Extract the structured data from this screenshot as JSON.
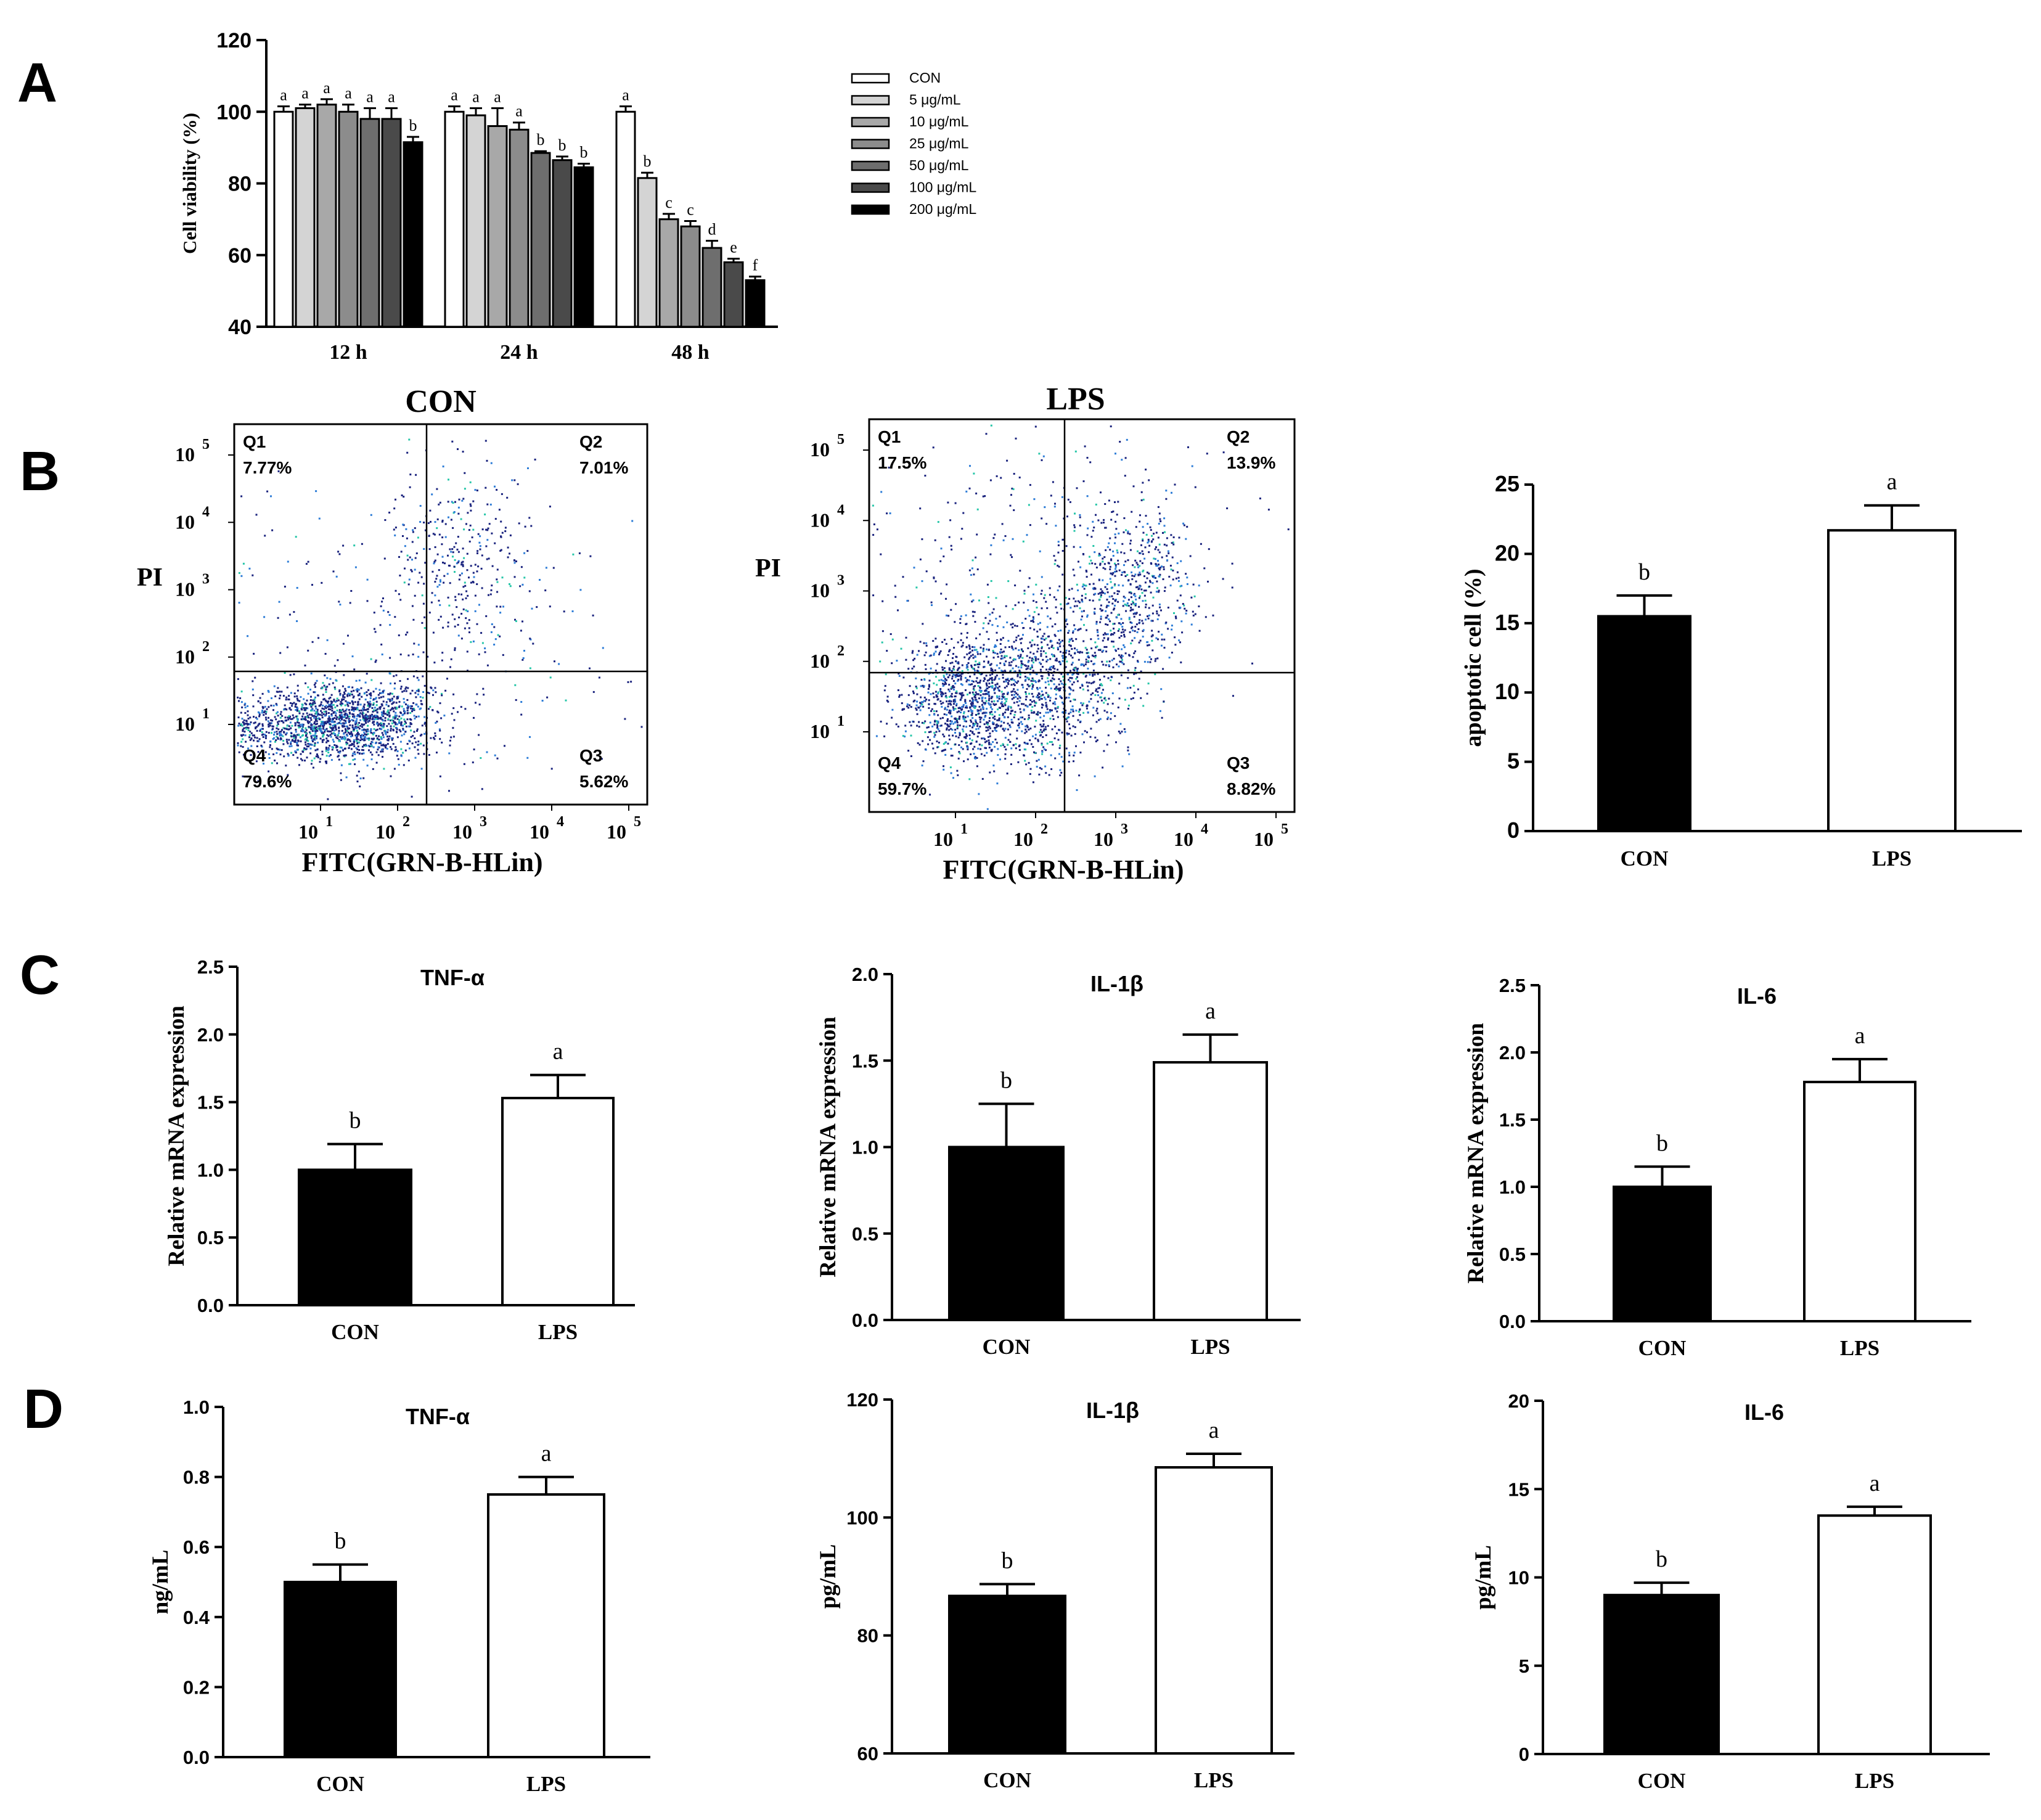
{
  "panel_letters": [
    "A",
    "B",
    "C",
    "D"
  ],
  "colors": {
    "axis": "#000000",
    "con_bar": "#000000",
    "lps_bar": "#ffffff",
    "dot_dark": "#1a237e",
    "dot_mid": "#2e7dd7",
    "dot_light": "#26c6a8"
  },
  "chart_data": [
    {
      "id": "A",
      "type": "bar",
      "categories": [
        "12 h",
        "24 h",
        "48 h"
      ],
      "ylabel": "Cell viability (%)",
      "ylim": [
        40,
        120
      ],
      "yticks": [
        40,
        60,
        80,
        100,
        120
      ],
      "series": [
        {
          "name": "CON",
          "color": "#ffffff",
          "values": [
            100,
            100,
            100
          ],
          "errors": [
            1.5,
            1.5,
            1.5
          ],
          "letters": [
            "a",
            "a",
            "a"
          ]
        },
        {
          "name": "5 μg/mL",
          "color": "#d4d4d4",
          "values": [
            101,
            99,
            81.5
          ],
          "errors": [
            1,
            2,
            1.5
          ],
          "letters": [
            "a",
            "a",
            "b"
          ]
        },
        {
          "name": "10 μg/mL",
          "color": "#a8a8a8",
          "values": [
            102,
            96,
            70
          ],
          "errors": [
            1.5,
            5,
            1.5
          ],
          "letters": [
            "a",
            "a",
            "c"
          ]
        },
        {
          "name": "25 μg/mL",
          "color": "#8c8c8c",
          "values": [
            100,
            95,
            68
          ],
          "errors": [
            2,
            2,
            1.5
          ],
          "letters": [
            "a",
            "a",
            "c"
          ]
        },
        {
          "name": "50 μg/mL",
          "color": "#6e6e6e",
          "values": [
            98,
            88.5,
            62
          ],
          "errors": [
            3,
            0.5,
            2
          ],
          "letters": [
            "a",
            "b",
            "d"
          ]
        },
        {
          "name": "100 μg/mL",
          "color": "#4a4a4a",
          "values": [
            98,
            86.5,
            58
          ],
          "errors": [
            3,
            1,
            1
          ],
          "letters": [
            "a",
            "b",
            "e"
          ]
        },
        {
          "name": "200 μg/mL",
          "color": "#000000",
          "values": [
            91.5,
            84.5,
            53
          ],
          "errors": [
            1.5,
            1,
            1
          ],
          "letters": [
            "b",
            "b",
            "f"
          ]
        }
      ]
    },
    {
      "id": "B-apoptosis",
      "type": "bar",
      "categories": [
        "CON",
        "LPS"
      ],
      "values": [
        15.5,
        21.7
      ],
      "errors": [
        1.5,
        1.8
      ],
      "letters": [
        "b",
        "a"
      ],
      "ylabel": "apoptotic cell (%)",
      "ylim": [
        0,
        25
      ],
      "yticks": [
        0,
        5,
        10,
        15,
        20,
        25
      ]
    },
    {
      "id": "C-TNF",
      "type": "bar",
      "title": "TNF-α",
      "categories": [
        "CON",
        "LPS"
      ],
      "values": [
        1.0,
        1.53
      ],
      "errors": [
        0.19,
        0.17
      ],
      "letters": [
        "b",
        "a"
      ],
      "ylabel": "Relative mRNA  expression",
      "ylim": [
        0,
        2.5
      ],
      "yticks": [
        "0.0",
        "0.5",
        "1.0",
        "1.5",
        "2.0",
        "2.5"
      ]
    },
    {
      "id": "C-IL1b",
      "type": "bar",
      "title": "IL-1β",
      "categories": [
        "CON",
        "LPS"
      ],
      "values": [
        1.0,
        1.49
      ],
      "errors": [
        0.25,
        0.16
      ],
      "letters": [
        "b",
        "a"
      ],
      "ylabel": "Relative mRNA  expression",
      "ylim": [
        0,
        2.0
      ],
      "yticks": [
        "0.0",
        "0.5",
        "1.0",
        "1.5",
        "2.0"
      ]
    },
    {
      "id": "C-IL6",
      "type": "bar",
      "title": "IL-6",
      "categories": [
        "CON",
        "LPS"
      ],
      "values": [
        1.0,
        1.78
      ],
      "errors": [
        0.15,
        0.17
      ],
      "letters": [
        "b",
        "a"
      ],
      "ylabel": "Relative mRNA  expression",
      "ylim": [
        0,
        2.5
      ],
      "yticks": [
        "0.0",
        "0.5",
        "1.0",
        "1.5",
        "2.0",
        "2.5"
      ]
    },
    {
      "id": "D-TNF",
      "type": "bar",
      "title": "TNF-α",
      "categories": [
        "CON",
        "LPS"
      ],
      "values": [
        0.5,
        0.75
      ],
      "errors": [
        0.05,
        0.05
      ],
      "letters": [
        "b",
        "a"
      ],
      "ylabel": "ng/mL",
      "ylim": [
        0,
        1.0
      ],
      "yticks": [
        "0.0",
        "0.2",
        "0.4",
        "0.6",
        "0.8",
        "1.0"
      ]
    },
    {
      "id": "D-IL1b",
      "type": "bar",
      "title": "IL-1β",
      "categories": [
        "CON",
        "LPS"
      ],
      "values": [
        86.7,
        108.5
      ],
      "errors": [
        2.0,
        2.3
      ],
      "letters": [
        "b",
        "a"
      ],
      "ylabel": "pg/mL",
      "ylim": [
        60,
        120
      ],
      "yticks": [
        60,
        80,
        100,
        120
      ]
    },
    {
      "id": "D-IL6",
      "type": "bar",
      "title": "IL-6",
      "categories": [
        "CON",
        "LPS"
      ],
      "values": [
        9.0,
        13.5
      ],
      "errors": [
        0.7,
        0.5
      ],
      "letters": [
        "b",
        "a"
      ],
      "ylabel": "pg/mL",
      "ylim": [
        0,
        20
      ],
      "yticks": [
        0,
        5,
        10,
        15,
        20
      ]
    }
  ],
  "flow": [
    {
      "id": "flow-con",
      "title": "CON",
      "ylabel": "PI",
      "xlabel": "FITC(GRN-B-HLin)",
      "q1": {
        "label": "Q1",
        "value": "7.77%"
      },
      "q2": {
        "label": "Q2",
        "value": "7.01%"
      },
      "q3": {
        "label": "Q3",
        "value": "5.62%"
      },
      "q4": {
        "label": "Q4",
        "value": "79.6%"
      },
      "ticks": [
        "10",
        "10",
        "10",
        "10",
        "10"
      ],
      "exps": [
        "1",
        "2",
        "3",
        "4",
        "5"
      ],
      "clusters": [
        [
          20,
          2200
        ],
        [
          25,
          2500
        ],
        [
          70,
          600
        ],
        [
          30,
          500
        ],
        [
          80,
          250
        ]
      ]
    },
    {
      "id": "flow-lps",
      "title": "LPS",
      "ylabel": "PI",
      "xlabel": "FITC(GRN-B-HLin)",
      "q1": {
        "label": "Q1",
        "value": "17.5%"
      },
      "q2": {
        "label": "Q2",
        "value": "13.9%"
      },
      "q3": {
        "label": "Q3",
        "value": "8.82%"
      },
      "q4": {
        "label": "Q4",
        "value": "59.7%"
      },
      "ticks": [
        "10",
        "10",
        "10",
        "10",
        "10"
      ],
      "exps": [
        "1",
        "2",
        "3",
        "4",
        "5"
      ],
      "clusters": [
        [
          25,
          1700
        ],
        [
          30,
          2300
        ],
        [
          80,
          900
        ],
        [
          40,
          700
        ],
        [
          90,
          450
        ]
      ]
    }
  ]
}
